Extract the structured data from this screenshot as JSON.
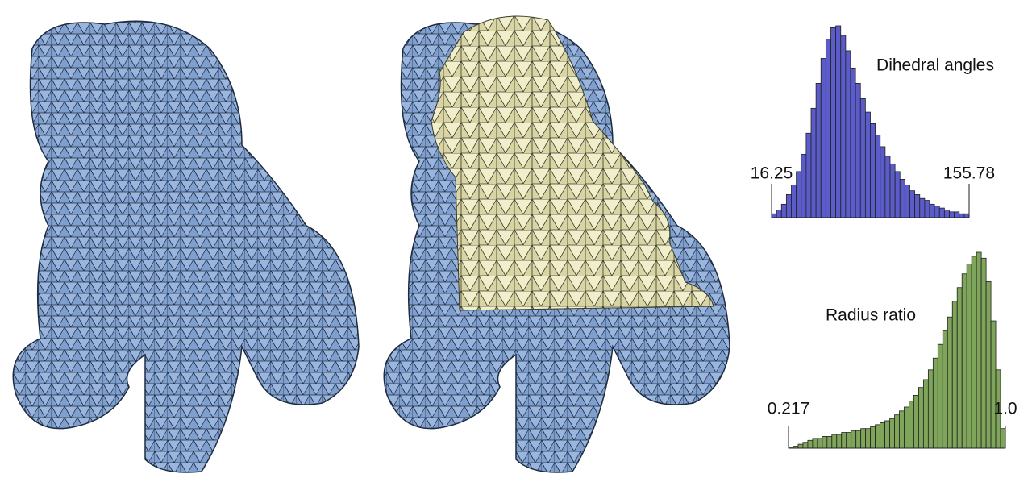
{
  "chart_data": [
    {
      "type": "histogram",
      "title": "Dihedral angles",
      "color": "#5b5bc9",
      "bins": [
        16.25,
        19.74,
        23.23,
        26.71,
        30.2,
        33.69,
        37.18,
        40.67,
        44.16,
        47.64,
        51.13,
        54.62,
        58.11,
        61.6,
        65.09,
        68.57,
        72.06,
        75.55,
        79.04,
        82.53,
        86.02,
        89.5,
        92.99,
        96.48,
        99.97,
        103.46,
        106.95,
        110.43,
        113.92,
        117.41,
        120.9,
        124.39,
        127.88,
        131.36,
        134.85,
        138.34,
        141.83,
        145.32,
        148.81,
        152.29,
        155.78
      ],
      "values": [
        2,
        4,
        7,
        12,
        17,
        24,
        33,
        44,
        57,
        70,
        83,
        93,
        99,
        100,
        95,
        87,
        78,
        70,
        62,
        55,
        49,
        43,
        37,
        32,
        28,
        24,
        20,
        17,
        14,
        12,
        10,
        9,
        7,
        6,
        5,
        4,
        3,
        3,
        2,
        2
      ],
      "xlim": [
        16.25,
        155.78
      ],
      "xticks": [
        16.25,
        155.78
      ],
      "ylim": [
        0,
        100
      ]
    },
    {
      "type": "histogram",
      "title": "Radius ratio",
      "color": "#7fa55a",
      "bins": [
        0.217,
        0.2344,
        0.2518,
        0.2692,
        0.2866,
        0.304,
        0.3214,
        0.3388,
        0.3562,
        0.3736,
        0.391,
        0.4084,
        0.4258,
        0.4432,
        0.4606,
        0.478,
        0.4954,
        0.5128,
        0.5302,
        0.5476,
        0.565,
        0.5824,
        0.5998,
        0.6172,
        0.6346,
        0.652,
        0.6694,
        0.6868,
        0.7042,
        0.7216,
        0.739,
        0.7564,
        0.7738,
        0.7912,
        0.8086,
        0.826,
        0.8434,
        0.8608,
        0.8782,
        0.8956,
        0.913,
        0.9304,
        0.9478,
        0.9652,
        0.9826,
        1
      ],
      "values": [
        0.5,
        1,
        2,
        3,
        4,
        5,
        5,
        6,
        6,
        7,
        7,
        8,
        8,
        9,
        9,
        10,
        10,
        11,
        12,
        13,
        14,
        15,
        17,
        19,
        21,
        24,
        27,
        31,
        35,
        40,
        46,
        53,
        60,
        67,
        75,
        82,
        89,
        94,
        98,
        100,
        97,
        85,
        65,
        40,
        10
      ],
      "xlim": [
        0.217,
        1
      ],
      "xticks": [
        0.217,
        {
          "value": 1,
          "label": "1.0"
        }
      ],
      "ylim": [
        0,
        100
      ]
    }
  ]
}
